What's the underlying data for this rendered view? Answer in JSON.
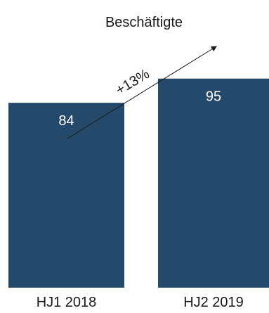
{
  "chart_data": {
    "type": "bar",
    "title": "Beschäftigte",
    "categories": [
      "HJ1 2018",
      "HJ2 2019"
    ],
    "values": [
      84,
      95
    ],
    "data_labels": [
      "84",
      "95"
    ],
    "annotation": "+13%",
    "xlabel": "",
    "ylabel": "",
    "ylim": [
      0,
      100
    ],
    "grid": false,
    "legend": "none",
    "colors": {
      "bar": "#24496a",
      "bar_label": "#ffffff",
      "text": "#1a1a1a",
      "arrow": "#1a1a1a"
    }
  }
}
